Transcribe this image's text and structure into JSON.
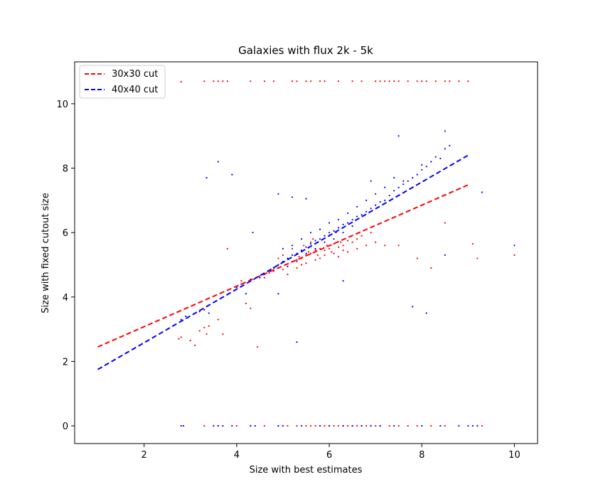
{
  "chart_data": {
    "type": "scatter",
    "title": "Galaxies with flux 2k - 5k",
    "xlabel": "Size with best estimates",
    "ylabel": "Size with fixed cutout size",
    "xlim": [
      0.5,
      10.5
    ],
    "ylim": [
      -0.55,
      11.3
    ],
    "xticks": [
      2,
      4,
      6,
      8,
      10
    ],
    "yticks": [
      0,
      2,
      4,
      6,
      8,
      10
    ],
    "grid": false,
    "legend_position": "top-left",
    "series": [
      {
        "name": "30x30 cut",
        "color": "#ff0000",
        "fit_line": {
          "x": [
            1.0,
            9.0
          ],
          "y": [
            2.45,
            7.48
          ],
          "style": "dashed"
        },
        "points": [
          [
            2.8,
            10.68
          ],
          [
            3.3,
            10.7
          ],
          [
            3.5,
            10.7
          ],
          [
            3.6,
            10.7
          ],
          [
            3.7,
            10.7
          ],
          [
            3.8,
            10.7
          ],
          [
            4.3,
            10.7
          ],
          [
            4.6,
            10.7
          ],
          [
            4.8,
            10.7
          ],
          [
            5.2,
            10.7
          ],
          [
            5.3,
            10.7
          ],
          [
            5.5,
            10.7
          ],
          [
            5.6,
            10.7
          ],
          [
            5.8,
            10.7
          ],
          [
            5.9,
            10.7
          ],
          [
            6.2,
            10.7
          ],
          [
            6.5,
            10.7
          ],
          [
            6.7,
            10.7
          ],
          [
            7.0,
            10.7
          ],
          [
            7.1,
            10.7
          ],
          [
            7.2,
            10.7
          ],
          [
            7.3,
            10.7
          ],
          [
            7.4,
            10.7
          ],
          [
            7.5,
            10.7
          ],
          [
            7.7,
            10.7
          ],
          [
            7.9,
            10.7
          ],
          [
            8.0,
            10.7
          ],
          [
            8.1,
            10.7
          ],
          [
            8.3,
            10.7
          ],
          [
            8.5,
            10.7
          ],
          [
            8.6,
            10.7
          ],
          [
            8.8,
            10.7
          ],
          [
            9.0,
            10.7
          ],
          [
            2.75,
            2.7
          ],
          [
            2.8,
            2.75
          ],
          [
            3.0,
            2.65
          ],
          [
            3.1,
            2.5
          ],
          [
            3.2,
            2.95
          ],
          [
            3.3,
            3.05
          ],
          [
            3.35,
            2.85
          ],
          [
            3.4,
            3.1
          ],
          [
            3.6,
            3.3
          ],
          [
            3.7,
            2.85
          ],
          [
            3.8,
            5.5
          ],
          [
            4.1,
            4.5
          ],
          [
            4.2,
            3.8
          ],
          [
            4.3,
            3.65
          ],
          [
            4.45,
            2.45
          ],
          [
            4.6,
            4.6
          ],
          [
            4.7,
            4.75
          ],
          [
            4.8,
            4.8
          ],
          [
            4.9,
            4.9
          ],
          [
            5.0,
            4.85
          ],
          [
            5.05,
            5.0
          ],
          [
            5.1,
            4.95
          ],
          [
            5.2,
            5.1
          ],
          [
            5.3,
            5.1
          ],
          [
            5.35,
            5.25
          ],
          [
            5.4,
            5.2
          ],
          [
            5.5,
            5.3
          ],
          [
            5.55,
            5.4
          ],
          [
            5.6,
            5.35
          ],
          [
            5.7,
            5.45
          ],
          [
            5.75,
            5.3
          ],
          [
            5.8,
            5.5
          ],
          [
            5.9,
            5.45
          ],
          [
            5.95,
            5.6
          ],
          [
            6.0,
            5.5
          ],
          [
            6.05,
            5.4
          ],
          [
            6.1,
            5.65
          ],
          [
            6.2,
            5.55
          ],
          [
            6.25,
            5.7
          ],
          [
            6.3,
            5.6
          ],
          [
            6.4,
            5.75
          ],
          [
            6.5,
            5.7
          ],
          [
            6.6,
            5.8
          ],
          [
            6.7,
            5.9
          ],
          [
            6.8,
            5.6
          ],
          [
            6.9,
            6.0
          ],
          [
            5.0,
            5.3
          ],
          [
            5.2,
            5.5
          ],
          [
            5.4,
            5.0
          ],
          [
            5.6,
            5.7
          ],
          [
            5.8,
            5.2
          ],
          [
            6.0,
            5.9
          ],
          [
            6.2,
            5.25
          ],
          [
            6.4,
            5.4
          ],
          [
            6.6,
            5.5
          ],
          [
            5.1,
            4.7
          ],
          [
            5.3,
            4.9
          ],
          [
            5.5,
            5.05
          ],
          [
            5.7,
            5.15
          ],
          [
            5.9,
            5.3
          ],
          [
            6.1,
            5.35
          ],
          [
            6.3,
            5.45
          ],
          [
            4.9,
            5.2
          ],
          [
            5.45,
            5.6
          ],
          [
            5.65,
            5.8
          ],
          [
            6.15,
            6.0
          ],
          [
            7.0,
            5.7
          ],
          [
            7.2,
            5.6
          ],
          [
            7.5,
            5.6
          ],
          [
            7.9,
            5.2
          ],
          [
            8.2,
            4.9
          ],
          [
            8.5,
            6.3
          ],
          [
            9.2,
            5.2
          ],
          [
            10.0,
            5.3
          ],
          [
            9.1,
            5.65
          ],
          [
            3.3,
            0.0
          ],
          [
            3.6,
            0.0
          ],
          [
            4.0,
            0.0
          ],
          [
            4.3,
            0.0
          ],
          [
            4.6,
            0.0
          ],
          [
            4.9,
            0.0
          ],
          [
            5.1,
            0.0
          ],
          [
            5.3,
            0.0
          ],
          [
            5.5,
            0.0
          ],
          [
            5.6,
            0.0
          ],
          [
            5.7,
            0.0
          ],
          [
            5.8,
            0.0
          ],
          [
            5.9,
            0.0
          ],
          [
            6.0,
            0.0
          ],
          [
            6.1,
            0.0
          ],
          [
            6.2,
            0.0
          ],
          [
            6.3,
            0.0
          ],
          [
            6.4,
            0.0
          ],
          [
            6.5,
            0.0
          ],
          [
            6.6,
            0.0
          ],
          [
            6.7,
            0.0
          ],
          [
            6.8,
            0.0
          ],
          [
            6.9,
            0.0
          ],
          [
            7.0,
            0.0
          ],
          [
            7.1,
            0.0
          ],
          [
            7.3,
            0.0
          ],
          [
            7.5,
            0.0
          ],
          [
            7.7,
            0.0
          ],
          [
            7.9,
            0.0
          ],
          [
            8.2,
            0.0
          ],
          [
            8.5,
            0.0
          ],
          [
            9.3,
            0.0
          ]
        ]
      },
      {
        "name": "40x40 cut",
        "color": "#0000ff",
        "fit_line": {
          "x": [
            1.0,
            9.0
          ],
          "y": [
            1.75,
            8.4
          ],
          "style": "dashed"
        },
        "points": [
          [
            2.8,
            3.3
          ],
          [
            2.9,
            3.4
          ],
          [
            3.2,
            3.55
          ],
          [
            3.3,
            3.6
          ],
          [
            3.4,
            3.5
          ],
          [
            3.35,
            7.7
          ],
          [
            3.6,
            8.2
          ],
          [
            3.9,
            7.8
          ],
          [
            4.0,
            4.3
          ],
          [
            4.1,
            4.4
          ],
          [
            4.2,
            4.1
          ],
          [
            4.3,
            4.55
          ],
          [
            4.35,
            6.0
          ],
          [
            4.5,
            4.6
          ],
          [
            4.6,
            4.7
          ],
          [
            4.7,
            4.8
          ],
          [
            4.8,
            4.9
          ],
          [
            4.9,
            5.0
          ],
          [
            5.0,
            5.1
          ],
          [
            5.1,
            5.2
          ],
          [
            5.2,
            5.3
          ],
          [
            5.3,
            5.35
          ],
          [
            5.4,
            5.45
          ],
          [
            5.5,
            5.55
          ],
          [
            5.6,
            5.65
          ],
          [
            5.7,
            5.75
          ],
          [
            5.8,
            5.8
          ],
          [
            5.9,
            5.9
          ],
          [
            6.0,
            6.0
          ],
          [
            6.1,
            6.05
          ],
          [
            6.2,
            6.15
          ],
          [
            6.3,
            6.25
          ],
          [
            6.4,
            6.3
          ],
          [
            6.5,
            6.4
          ],
          [
            6.6,
            6.5
          ],
          [
            6.7,
            6.55
          ],
          [
            6.8,
            6.65
          ],
          [
            6.9,
            6.75
          ],
          [
            7.0,
            6.85
          ],
          [
            7.1,
            6.95
          ],
          [
            7.2,
            7.0
          ],
          [
            7.3,
            7.15
          ],
          [
            7.4,
            7.3
          ],
          [
            7.5,
            7.4
          ],
          [
            7.6,
            7.5
          ],
          [
            7.7,
            7.6
          ],
          [
            7.8,
            7.7
          ],
          [
            7.9,
            7.8
          ],
          [
            8.0,
            7.95
          ],
          [
            8.1,
            8.05
          ],
          [
            8.2,
            8.2
          ],
          [
            8.3,
            8.35
          ],
          [
            8.4,
            8.3
          ],
          [
            8.5,
            8.6
          ],
          [
            8.6,
            8.7
          ],
          [
            8.5,
            9.15
          ],
          [
            7.5,
            9.0
          ],
          [
            6.9,
            7.6
          ],
          [
            4.9,
            7.2
          ],
          [
            5.2,
            7.1
          ],
          [
            5.5,
            7.05
          ],
          [
            6.3,
            4.5
          ],
          [
            5.3,
            2.6
          ],
          [
            4.9,
            4.1
          ],
          [
            7.8,
            3.7
          ],
          [
            8.1,
            3.5
          ],
          [
            8.5,
            5.3
          ],
          [
            9.3,
            7.25
          ],
          [
            10.0,
            5.6
          ],
          [
            5.0,
            5.5
          ],
          [
            5.2,
            5.6
          ],
          [
            5.4,
            5.8
          ],
          [
            5.6,
            6.0
          ],
          [
            5.8,
            6.1
          ],
          [
            6.0,
            6.3
          ],
          [
            6.2,
            6.4
          ],
          [
            6.4,
            6.6
          ],
          [
            6.6,
            6.8
          ],
          [
            5.1,
            4.95
          ],
          [
            5.3,
            5.15
          ],
          [
            5.5,
            5.35
          ],
          [
            5.7,
            5.5
          ],
          [
            5.9,
            5.7
          ],
          [
            6.1,
            5.8
          ],
          [
            6.3,
            6.0
          ],
          [
            6.5,
            6.2
          ],
          [
            7.2,
            7.4
          ],
          [
            7.4,
            7.7
          ],
          [
            7.0,
            7.2
          ],
          [
            6.8,
            7.0
          ],
          [
            7.6,
            7.6
          ],
          [
            8.0,
            8.1
          ],
          [
            2.8,
            0.0
          ],
          [
            2.85,
            0.0
          ],
          [
            3.5,
            0.0
          ],
          [
            3.6,
            0.0
          ],
          [
            3.7,
            0.0
          ],
          [
            3.9,
            0.0
          ],
          [
            4.3,
            0.0
          ],
          [
            4.4,
            0.0
          ],
          [
            4.9,
            0.0
          ],
          [
            5.0,
            0.0
          ],
          [
            5.4,
            0.0
          ],
          [
            5.8,
            0.0
          ],
          [
            6.0,
            0.0
          ],
          [
            6.3,
            0.0
          ],
          [
            6.5,
            0.0
          ],
          [
            6.7,
            0.0
          ],
          [
            6.9,
            0.0
          ],
          [
            7.1,
            0.0
          ],
          [
            7.4,
            0.0
          ],
          [
            8.0,
            0.0
          ],
          [
            8.4,
            0.0
          ],
          [
            8.8,
            0.0
          ],
          [
            9.0,
            0.0
          ],
          [
            9.1,
            0.0
          ],
          [
            9.2,
            0.0
          ]
        ]
      }
    ]
  }
}
